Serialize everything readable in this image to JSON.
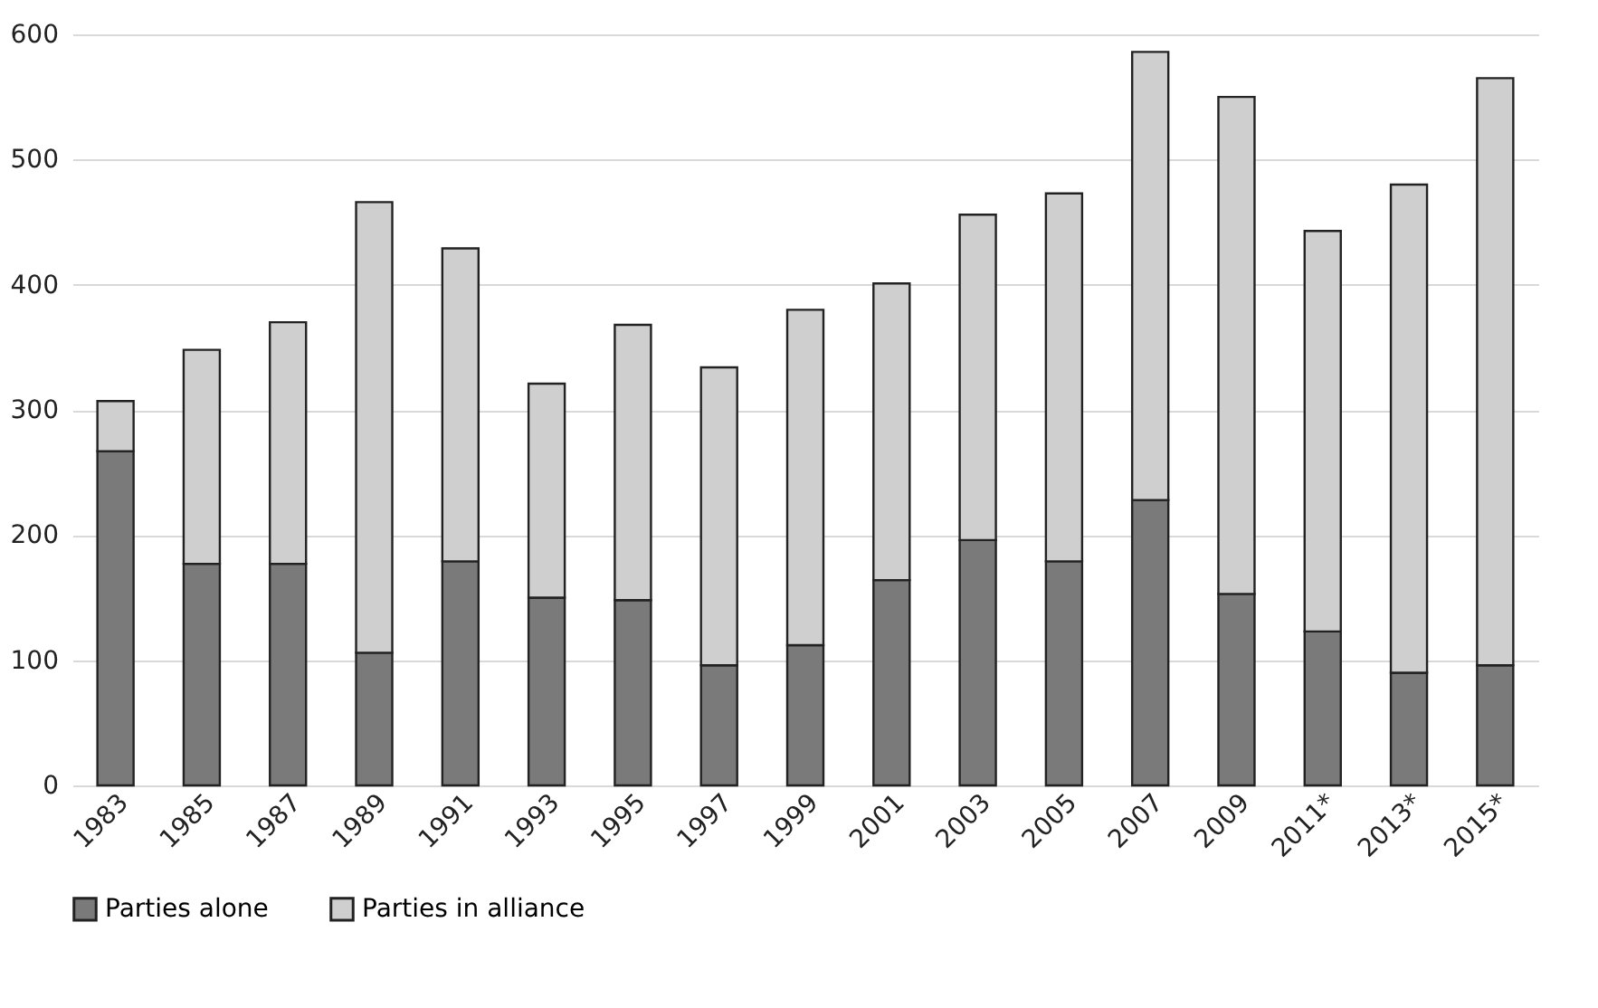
{
  "chart_data": {
    "type": "bar",
    "stacked": true,
    "categories": [
      "1983",
      "1985",
      "1987",
      "1989",
      "1991",
      "1993",
      "1995",
      "1997",
      "1999",
      "2001",
      "2003",
      "2005",
      "2007",
      "2009",
      "2011*",
      "2013*",
      "2015*"
    ],
    "series": [
      {
        "name": "Parties alone",
        "color": "#7a7a7a",
        "values": [
          267,
          177,
          177,
          106,
          179,
          150,
          148,
          96,
          112,
          164,
          196,
          179,
          228,
          153,
          123,
          90,
          96
        ]
      },
      {
        "name": "Parties in alliance",
        "color": "#cfcfcf",
        "values": [
          40,
          171,
          193,
          360,
          250,
          171,
          220,
          238,
          268,
          237,
          260,
          294,
          358,
          397,
          320,
          390,
          469
        ]
      }
    ],
    "ylim": [
      0,
      600
    ],
    "yticks": [
      0,
      100,
      200,
      300,
      400,
      500,
      600
    ],
    "grid": "y",
    "legend": "bottom"
  }
}
